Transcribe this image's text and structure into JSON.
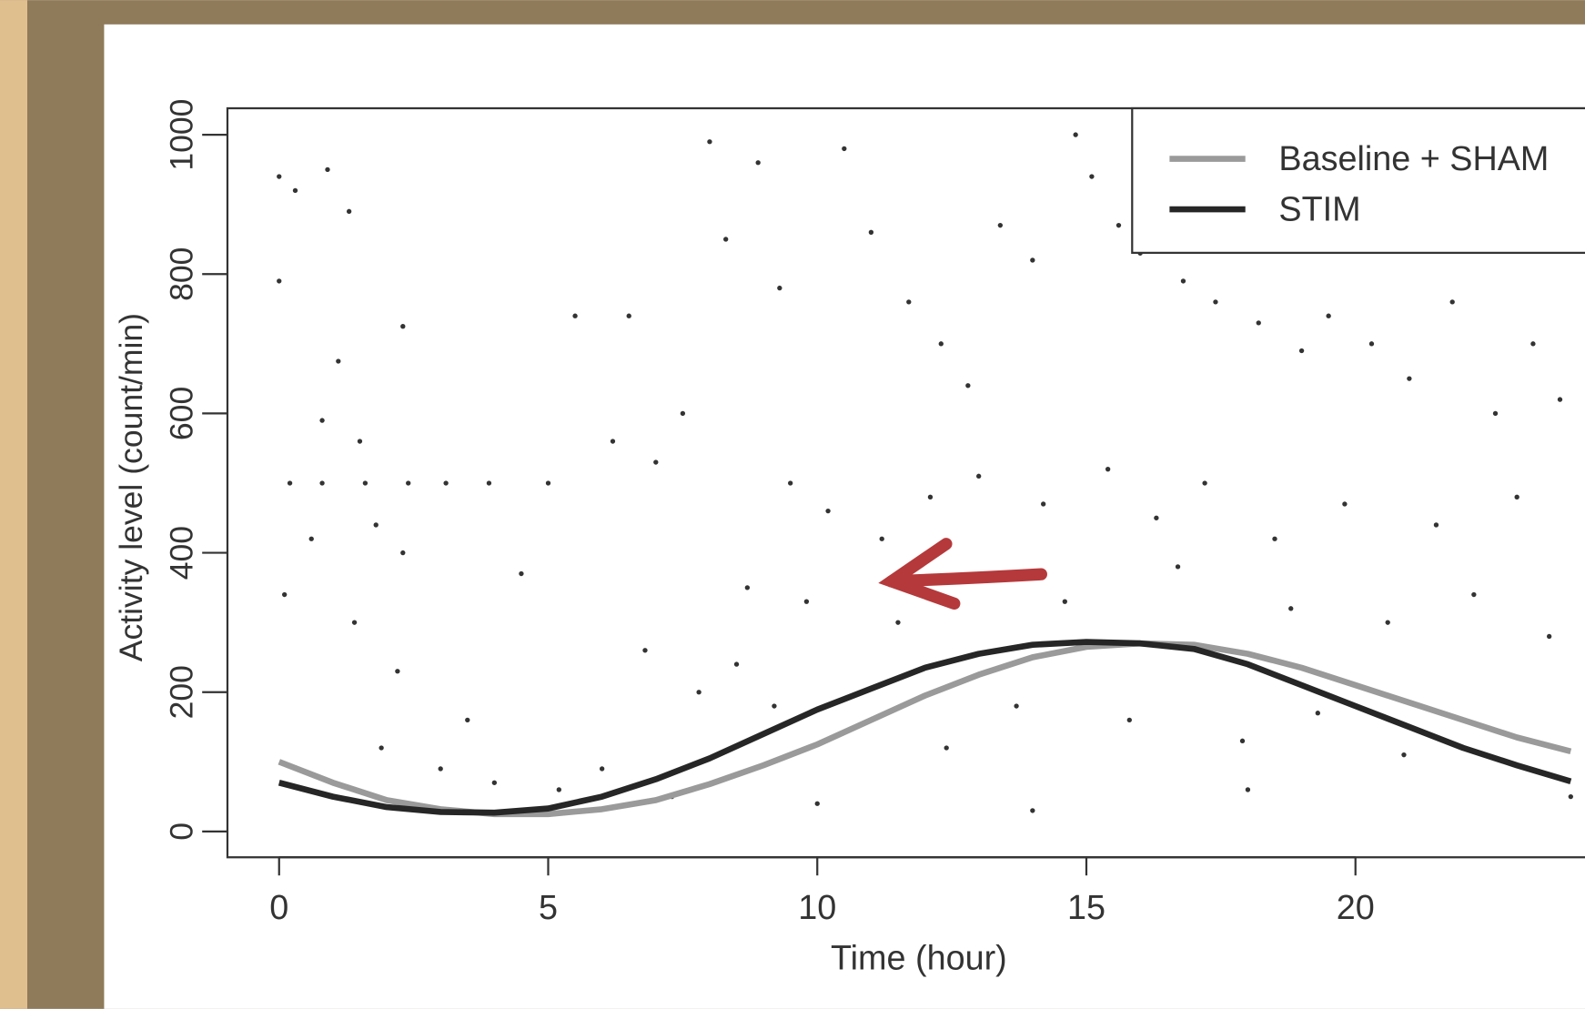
{
  "chart_data": {
    "type": "line",
    "xlabel": "Time (hour)",
    "ylabel": "Activity level (count/min)",
    "x": [
      0,
      1,
      2,
      3,
      4,
      5,
      6,
      7,
      8,
      9,
      10,
      11,
      12,
      13,
      14,
      15,
      16,
      17,
      18,
      19,
      20,
      21,
      22,
      23,
      24
    ],
    "series": [
      {
        "name": "Baseline + SHAM",
        "color": "#9a9a9a",
        "values": [
          100,
          70,
          45,
          32,
          25,
          25,
          32,
          45,
          68,
          95,
          125,
          160,
          195,
          225,
          250,
          265,
          270,
          268,
          255,
          235,
          210,
          185,
          160,
          135,
          115
        ]
      },
      {
        "name": "STIM",
        "color": "#262626",
        "values": [
          70,
          50,
          35,
          28,
          27,
          33,
          50,
          75,
          105,
          140,
          175,
          205,
          235,
          255,
          268,
          272,
          270,
          262,
          240,
          210,
          180,
          150,
          120,
          95,
          72
        ]
      }
    ],
    "points": {
      "color": "#333333",
      "x": [
        0,
        0.3,
        0.9,
        1.3,
        0,
        2.3,
        1.1,
        0.8,
        1.5,
        0.2,
        0.8,
        1.6,
        2.4,
        3.1,
        3.9,
        5,
        0.6,
        1.8,
        2.3,
        0.1,
        1.4,
        2.2,
        3.5,
        4.5,
        5.5,
        6.5,
        6.2,
        7,
        7.5,
        8,
        8.3,
        8.9,
        9.3,
        10.5,
        11,
        11.7,
        12.3,
        12.8,
        13.4,
        14,
        14.8,
        15.1,
        15.6,
        16,
        16.8,
        17.4,
        18.2,
        19,
        19.5,
        20.3,
        21,
        21.8,
        22.6,
        23.3,
        23.8,
        9.5,
        10.2,
        11.2,
        12.1,
        13,
        14.2,
        15.4,
        16.3,
        17.2,
        18.5,
        19.8,
        21.5,
        23,
        8.7,
        9.8,
        11.5,
        12.7,
        14.6,
        16.7,
        18.8,
        20.6,
        22.2,
        23.6,
        6.8,
        7.8,
        8.5,
        9.2,
        10.7,
        12.4,
        13.7,
        15.8,
        17.9,
        19.3,
        20.9,
        22.8,
        1.9,
        3,
        4,
        5.2,
        6,
        7.3,
        10,
        14,
        18,
        24
      ],
      "y": [
        940,
        920,
        950,
        890,
        790,
        725,
        675,
        590,
        560,
        500,
        500,
        500,
        500,
        500,
        500,
        500,
        420,
        440,
        400,
        340,
        300,
        230,
        160,
        370,
        740,
        740,
        560,
        530,
        600,
        990,
        850,
        960,
        780,
        980,
        860,
        760,
        700,
        640,
        870,
        820,
        1000,
        940,
        870,
        830,
        790,
        760,
        730,
        690,
        740,
        700,
        650,
        760,
        600,
        700,
        620,
        500,
        460,
        420,
        480,
        510,
        470,
        520,
        450,
        500,
        420,
        470,
        440,
        480,
        350,
        330,
        300,
        360,
        330,
        380,
        320,
        300,
        340,
        280,
        260,
        200,
        240,
        180,
        150,
        120,
        180,
        160,
        130,
        170,
        110,
        140,
        120,
        90,
        70,
        60,
        90,
        50,
        40,
        30,
        60,
        50
      ]
    },
    "xlim": [
      -0.96,
      24.96
    ],
    "ylim": [
      -37,
      1038
    ],
    "xticks": [
      0,
      5,
      10,
      15,
      20
    ],
    "yticks": [
      0,
      200,
      400,
      600,
      800,
      1000
    ],
    "legend": "top-right"
  }
}
